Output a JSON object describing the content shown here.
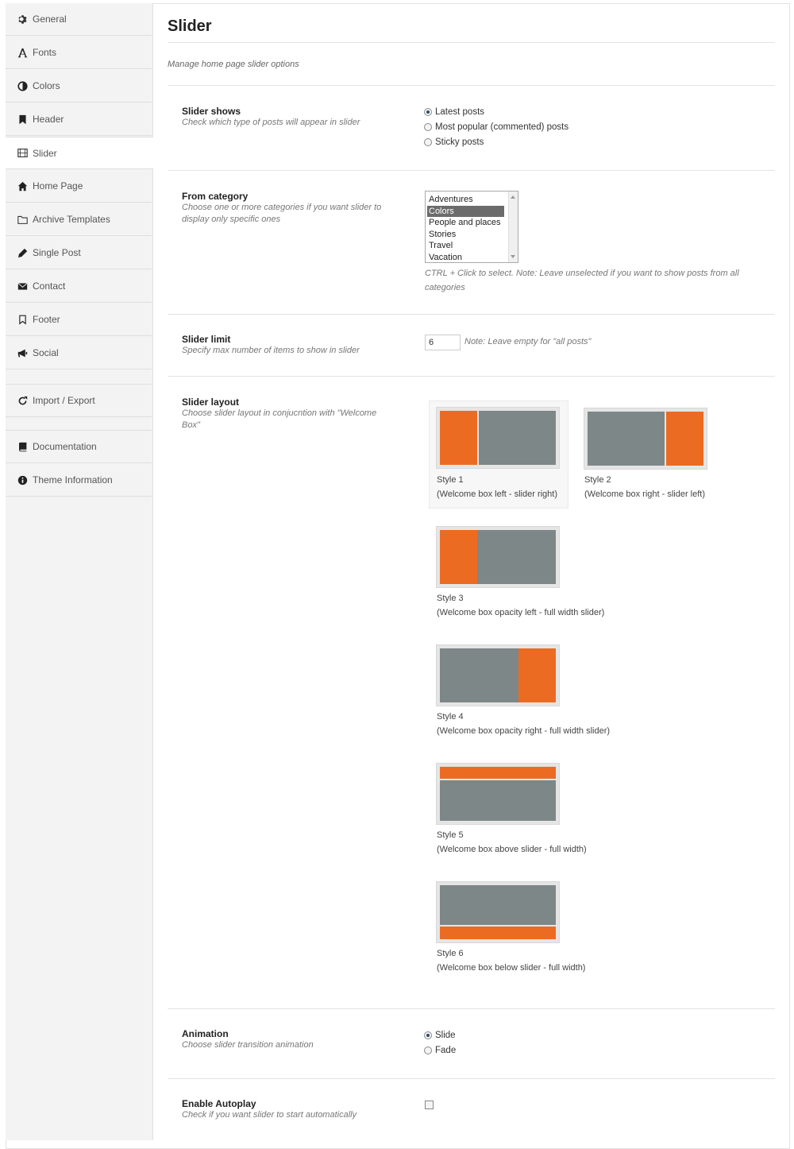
{
  "sidebar": {
    "items": [
      {
        "label": "General",
        "icon": "gear-icon"
      },
      {
        "label": "Fonts",
        "icon": "font-icon"
      },
      {
        "label": "Colors",
        "icon": "contrast-icon"
      },
      {
        "label": "Header",
        "icon": "bookmark-icon"
      },
      {
        "label": "Slider",
        "icon": "film-icon",
        "active": true
      },
      {
        "label": "Home Page",
        "icon": "home-icon"
      },
      {
        "label": "Archive Templates",
        "icon": "folder-icon"
      },
      {
        "label": "Single Post",
        "icon": "pencil-icon"
      },
      {
        "label": "Contact",
        "icon": "envelope-icon"
      },
      {
        "label": "Footer",
        "icon": "bookmark-outline-icon"
      },
      {
        "label": "Social",
        "icon": "megaphone-icon"
      }
    ],
    "tools": [
      {
        "label": "Import / Export",
        "icon": "refresh-icon"
      }
    ],
    "help": [
      {
        "label": "Documentation",
        "icon": "book-icon"
      },
      {
        "label": "Theme Information",
        "icon": "info-icon"
      }
    ]
  },
  "page": {
    "title": "Slider",
    "subtitle": "Manage home page slider options"
  },
  "slider_shows": {
    "title": "Slider shows",
    "desc": "Check which type of posts will appear in slider",
    "options": [
      {
        "label": "Latest posts",
        "selected": true
      },
      {
        "label": "Most popular (commented) posts",
        "selected": false
      },
      {
        "label": "Sticky posts",
        "selected": false
      }
    ]
  },
  "from_category": {
    "title": "From category",
    "desc": "Choose one or more categories if you want slider to display only specific ones",
    "options": [
      "Adventures",
      "Colors",
      "People and places",
      "Stories",
      "Travel",
      "Vacation"
    ],
    "selected": "Colors",
    "note": "CTRL + Click to select. Note: Leave unselected if you want to show posts from all categories"
  },
  "slider_limit": {
    "title": "Slider limit",
    "desc": "Specify max number of items to show in slider",
    "value": "6",
    "note": "Note: Leave empty for \"all posts\""
  },
  "slider_layout": {
    "title": "Slider layout",
    "desc": "Choose slider layout in conjucntion with \"Welcome Box\"",
    "accent_color": "#ec6b23",
    "slider_color": "#7e8787",
    "styles": [
      {
        "name": "Style 1",
        "caption": "(Welcome box left - slider right)",
        "selected": true
      },
      {
        "name": "Style 2",
        "caption": "(Welcome box right - slider left)",
        "selected": false
      },
      {
        "name": "Style 3",
        "caption": "(Welcome box opacity left - full width slider)",
        "selected": false
      },
      {
        "name": "Style 4",
        "caption": "(Welcome box opacity right - full width slider)",
        "selected": false
      },
      {
        "name": "Style 5",
        "caption": "(Welcome box above slider - full width)",
        "selected": false
      },
      {
        "name": "Style 6",
        "caption": "(Welcome box below slider - full width)",
        "selected": false
      }
    ]
  },
  "animation": {
    "title": "Animation",
    "desc": "Choose slider transition animation",
    "options": [
      {
        "label": "Slide",
        "selected": true
      },
      {
        "label": "Fade",
        "selected": false
      }
    ]
  },
  "autoplay": {
    "title": "Enable Autoplay",
    "desc": "Check if you want slider to start automatically",
    "checked": false
  }
}
